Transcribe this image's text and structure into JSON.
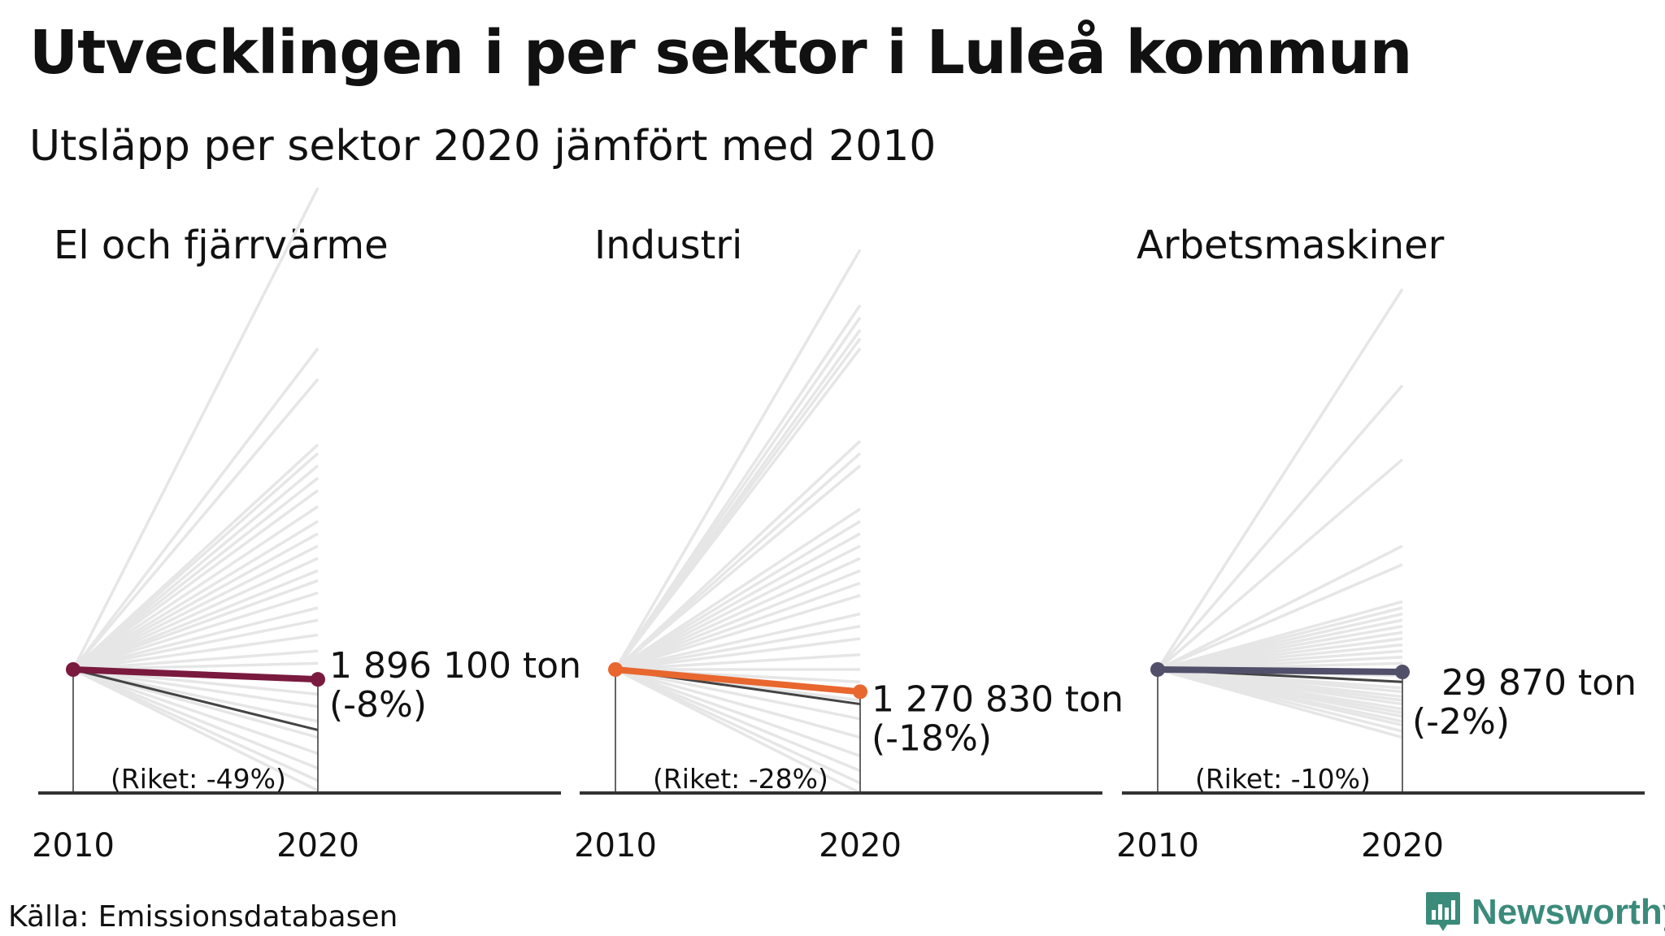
{
  "title": "Utvecklingen i per sektor i Luleå kommun",
  "subtitle": "Utsläpp per sektor 2020 jämfört med 2010",
  "source": "Källa: Emissionsdatabasen",
  "brand": "Newsworthy",
  "colors": {
    "el": "#7a1a3e",
    "industri": "#e8672f",
    "arbetsmaskiner": "#50506a",
    "riket": "#444444",
    "background_lines": "#e6e6e6",
    "brand": "#3b8b7b"
  },
  "chart_data": [
    {
      "type": "line",
      "title": "El och fjärrvärme",
      "x": [
        "2010",
        "2020"
      ],
      "value_label": "1 896 100 ton",
      "change_label": "(-8%)",
      "riket_label": "(Riket: -49%)",
      "series": [
        {
          "name": "Luleå",
          "values": [
            1,
            0.92
          ]
        },
        {
          "name": "Riket",
          "values": [
            1,
            0.51
          ]
        }
      ],
      "background_index_2020": [
        4.9,
        3.6,
        3.35,
        2.82,
        2.75,
        2.65,
        2.55,
        2.45,
        2.32,
        2.2,
        2.1,
        2.0,
        1.9,
        1.8,
        1.72,
        1.62,
        1.5,
        1.4,
        1.28,
        1.15,
        1.05,
        0.92,
        0.8,
        0.7,
        0.58,
        0.45,
        0.32,
        0.2,
        0.1,
        0.02
      ],
      "ylim": [
        0,
        5
      ]
    },
    {
      "type": "line",
      "title": "Industri",
      "x": [
        "2010",
        "2020"
      ],
      "value_label": "1 270 830 ton",
      "change_label": "(-18%)",
      "riket_label": "(Riket: -28%)",
      "series": [
        {
          "name": "Luleå",
          "values": [
            1,
            0.82
          ]
        },
        {
          "name": "Riket",
          "values": [
            1,
            0.72
          ]
        }
      ],
      "background_index_2020": [
        4.4,
        3.95,
        3.85,
        3.75,
        3.68,
        3.6,
        2.85,
        2.75,
        2.65,
        2.3,
        2.2,
        2.1,
        2.0,
        1.9,
        1.8,
        1.7,
        1.6,
        1.45,
        1.35,
        1.25,
        1.12,
        1.0,
        0.9,
        0.75,
        0.6,
        0.45,
        0.3,
        0.18,
        0.08,
        0.0
      ],
      "ylim": [
        0,
        5
      ]
    },
    {
      "type": "line",
      "title": "Arbetsmaskiner",
      "x": [
        "2010",
        "2020"
      ],
      "value_label": "29 870 ton",
      "change_label": "(-2%)",
      "riket_label": "(Riket: -10%)",
      "series": [
        {
          "name": "Luleå",
          "values": [
            1,
            0.98
          ]
        },
        {
          "name": "Riket",
          "values": [
            1,
            0.9
          ]
        }
      ],
      "background_index_2020": [
        4.08,
        3.3,
        2.7,
        2.0,
        1.85,
        1.55,
        1.5,
        1.45,
        1.4,
        1.35,
        1.3,
        1.25,
        1.2,
        1.15,
        1.1,
        1.05,
        0.95,
        0.9,
        0.85,
        0.82,
        0.78,
        0.75,
        0.72,
        0.68,
        0.65,
        0.62,
        0.58,
        0.55,
        0.5,
        0.45
      ],
      "ylim": [
        0,
        5
      ]
    }
  ]
}
